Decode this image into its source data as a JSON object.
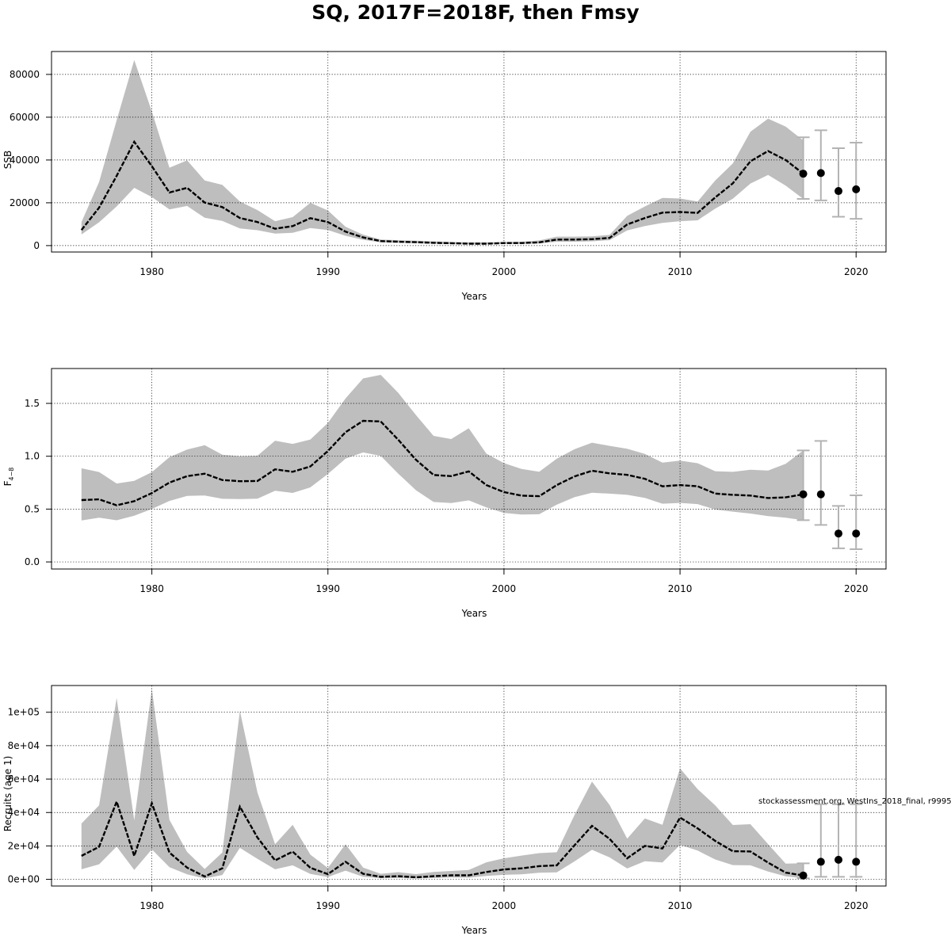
{
  "title": "SQ, 2017F=2018F, then Fmsy",
  "watermark": "stockassessment.org, WestIns_2018_final, r9995",
  "colors": {
    "band": "#bebebe",
    "line": "#000000",
    "grid": "#000000",
    "errorbar": "#b3b3b3",
    "frame": "#000000"
  },
  "chart_data": [
    {
      "type": "area",
      "xlabel": "Years",
      "ylabel": "SSB",
      "xlim": [
        1974.3,
        2021.7
      ],
      "ylim": [
        -3000,
        90700
      ],
      "xticks": [
        1980,
        1990,
        2000,
        2010,
        2020
      ],
      "yticks": [
        0,
        20000,
        40000,
        60000,
        80000
      ],
      "yticklabels": [
        "0",
        "20000",
        "40000",
        "60000",
        "80000"
      ],
      "grid": true,
      "years": [
        1976,
        1977,
        1978,
        1979,
        1980,
        1981,
        1982,
        1983,
        1984,
        1985,
        1986,
        1987,
        1988,
        1989,
        1990,
        1991,
        1992,
        1993,
        1994,
        1995,
        1996,
        1997,
        1998,
        1999,
        2000,
        2001,
        2002,
        2003,
        2004,
        2005,
        2006,
        2007,
        2008,
        2009,
        2010,
        2011,
        2012,
        2013,
        2014,
        2015,
        2016,
        2017
      ],
      "estimate": [
        7300,
        17700,
        32600,
        48500,
        37100,
        24800,
        27000,
        20100,
        18000,
        12900,
        11000,
        7900,
        9100,
        12800,
        11000,
        6500,
        3800,
        2100,
        1800,
        1600,
        1300,
        1100,
        900,
        900,
        1200,
        1200,
        1500,
        2800,
        2800,
        3000,
        3600,
        9900,
        12900,
        15400,
        15700,
        15300,
        22500,
        29100,
        39400,
        44200,
        40000,
        33600
      ],
      "upper": [
        11000,
        29700,
        58600,
        86700,
        62700,
        36400,
        39800,
        30400,
        28400,
        20600,
        16600,
        11400,
        13300,
        20000,
        16400,
        8800,
        5100,
        2800,
        2500,
        2300,
        2000,
        1700,
        1500,
        1500,
        1700,
        1800,
        2400,
        4200,
        4200,
        4300,
        5000,
        13900,
        18300,
        22300,
        22000,
        20600,
        30400,
        38400,
        53200,
        59300,
        55600,
        49100
      ],
      "lower": [
        5200,
        10900,
        18300,
        27000,
        22700,
        16900,
        18500,
        13000,
        11500,
        8000,
        7200,
        5600,
        6000,
        8200,
        7300,
        4600,
        2700,
        1500,
        1300,
        1100,
        900,
        700,
        600,
        600,
        800,
        800,
        1000,
        1800,
        1800,
        2000,
        2500,
        7100,
        9100,
        10600,
        11400,
        11800,
        17300,
        21900,
        29000,
        33000,
        28000,
        21800
      ],
      "forecast": {
        "years": [
          2017,
          2018,
          2019,
          2020
        ],
        "median": [
          33600,
          33900,
          25500,
          26300
        ],
        "low": [
          21800,
          21100,
          13500,
          12500
        ],
        "high": [
          50600,
          53900,
          45500,
          48100
        ]
      }
    },
    {
      "type": "area",
      "xlabel": "Years",
      "ylabel": "F",
      "ylabel_subscript": "4−8",
      "xlim": [
        1974.3,
        2021.7
      ],
      "ylim": [
        -0.067,
        1.83
      ],
      "xticks": [
        1980,
        1990,
        2000,
        2010,
        2020
      ],
      "yticks": [
        0.0,
        0.5,
        1.0,
        1.5
      ],
      "yticklabels": [
        "0.0",
        "0.5",
        "1.0",
        "1.5"
      ],
      "grid": true,
      "years": [
        1976,
        1977,
        1978,
        1979,
        1980,
        1981,
        1982,
        1983,
        1984,
        1985,
        1986,
        1987,
        1988,
        1989,
        1990,
        1991,
        1992,
        1993,
        1994,
        1995,
        1996,
        1997,
        1998,
        1999,
        2000,
        2001,
        2002,
        2003,
        2004,
        2005,
        2006,
        2007,
        2008,
        2009,
        2010,
        2011,
        2012,
        2013,
        2014,
        2015,
        2016,
        2017
      ],
      "estimate": [
        0.585,
        0.592,
        0.536,
        0.575,
        0.651,
        0.751,
        0.812,
        0.835,
        0.775,
        0.764,
        0.766,
        0.876,
        0.853,
        0.903,
        1.05,
        1.227,
        1.335,
        1.329,
        1.155,
        0.966,
        0.823,
        0.812,
        0.857,
        0.727,
        0.661,
        0.627,
        0.622,
        0.727,
        0.809,
        0.863,
        0.838,
        0.824,
        0.786,
        0.716,
        0.727,
        0.716,
        0.647,
        0.635,
        0.628,
        0.605,
        0.611,
        0.64
      ],
      "upper": [
        0.886,
        0.851,
        0.742,
        0.767,
        0.85,
        0.991,
        1.064,
        1.104,
        1.015,
        1.001,
        1.005,
        1.147,
        1.117,
        1.158,
        1.316,
        1.547,
        1.736,
        1.77,
        1.599,
        1.389,
        1.193,
        1.163,
        1.265,
        1.025,
        0.935,
        0.879,
        0.854,
        0.977,
        1.066,
        1.128,
        1.098,
        1.071,
        1.022,
        0.939,
        0.958,
        0.934,
        0.858,
        0.852,
        0.872,
        0.864,
        0.928,
        1.055
      ],
      "lower": [
        0.392,
        0.419,
        0.394,
        0.437,
        0.501,
        0.577,
        0.624,
        0.629,
        0.597,
        0.594,
        0.598,
        0.674,
        0.653,
        0.705,
        0.833,
        0.977,
        1.036,
        1.003,
        0.835,
        0.678,
        0.567,
        0.557,
        0.582,
        0.516,
        0.464,
        0.449,
        0.451,
        0.542,
        0.612,
        0.654,
        0.646,
        0.635,
        0.606,
        0.551,
        0.558,
        0.547,
        0.495,
        0.476,
        0.458,
        0.433,
        0.419,
        0.395
      ],
      "forecast": {
        "years": [
          2017,
          2018,
          2019,
          2020
        ],
        "median": [
          0.64,
          0.64,
          0.269,
          0.269
        ],
        "low": [
          0.395,
          0.35,
          0.129,
          0.12
        ],
        "high": [
          1.055,
          1.145,
          0.53,
          0.63
        ]
      }
    },
    {
      "type": "area",
      "xlabel": "Years",
      "ylabel": "Recruits (age 1)",
      "xlim": [
        1974.3,
        2021.7
      ],
      "ylim": [
        -4000,
        116000
      ],
      "xticks": [
        1980,
        1990,
        2000,
        2010,
        2020
      ],
      "yticks": [
        0,
        20000,
        40000,
        60000,
        80000,
        100000
      ],
      "yticklabels": [
        "0e+00",
        "2e+04",
        "4e+04",
        "6e+04",
        "8e+04",
        "1e+05"
      ],
      "grid": true,
      "years": [
        1976,
        1977,
        1978,
        1979,
        1980,
        1981,
        1982,
        1983,
        1984,
        1985,
        1986,
        1987,
        1988,
        1989,
        1990,
        1991,
        1992,
        1993,
        1994,
        1995,
        1996,
        1997,
        1998,
        1999,
        2000,
        2001,
        2002,
        2003,
        2004,
        2005,
        2006,
        2007,
        2008,
        2009,
        2010,
        2011,
        2012,
        2013,
        2014,
        2015,
        2016,
        2017
      ],
      "estimate": [
        14000,
        19500,
        46500,
        14000,
        45500,
        16000,
        7000,
        1700,
        6600,
        43500,
        25000,
        11300,
        16600,
        6900,
        3100,
        10500,
        3300,
        1500,
        1900,
        1200,
        1900,
        2400,
        2400,
        4400,
        5900,
        6600,
        7900,
        8400,
        20300,
        32000,
        24200,
        12600,
        20000,
        18500,
        37000,
        30500,
        23000,
        16800,
        16700,
        10000,
        4000,
        2300
      ],
      "upper": [
        33400,
        44300,
        108500,
        35300,
        113900,
        35600,
        16400,
        6200,
        16000,
        100800,
        51900,
        21000,
        32600,
        14800,
        6800,
        21000,
        7000,
        3300,
        4300,
        3100,
        4400,
        5000,
        5600,
        10200,
        12600,
        14200,
        15700,
        16200,
        38300,
        58500,
        44500,
        24300,
        36400,
        32600,
        66400,
        54000,
        44300,
        32500,
        33000,
        21100,
        9400,
        9600
      ],
      "lower": [
        6000,
        9000,
        19600,
        5600,
        17900,
        7300,
        3000,
        500,
        2600,
        18800,
        12200,
        6000,
        8400,
        3200,
        1400,
        5200,
        1500,
        700,
        800,
        500,
        800,
        1100,
        1000,
        2000,
        2700,
        3000,
        3900,
        4200,
        10700,
        17700,
        13100,
        6500,
        10800,
        10100,
        20600,
        17200,
        11900,
        8500,
        8400,
        4700,
        1800,
        600
      ],
      "forecast": {
        "years": [
          2017,
          2018,
          2019,
          2020
        ],
        "median": [
          2300,
          10500,
          11700,
          10500
        ],
        "low": [
          600,
          1500,
          1500,
          1500
        ],
        "high": [
          9600,
          45000,
          45000,
          45000
        ]
      }
    }
  ]
}
